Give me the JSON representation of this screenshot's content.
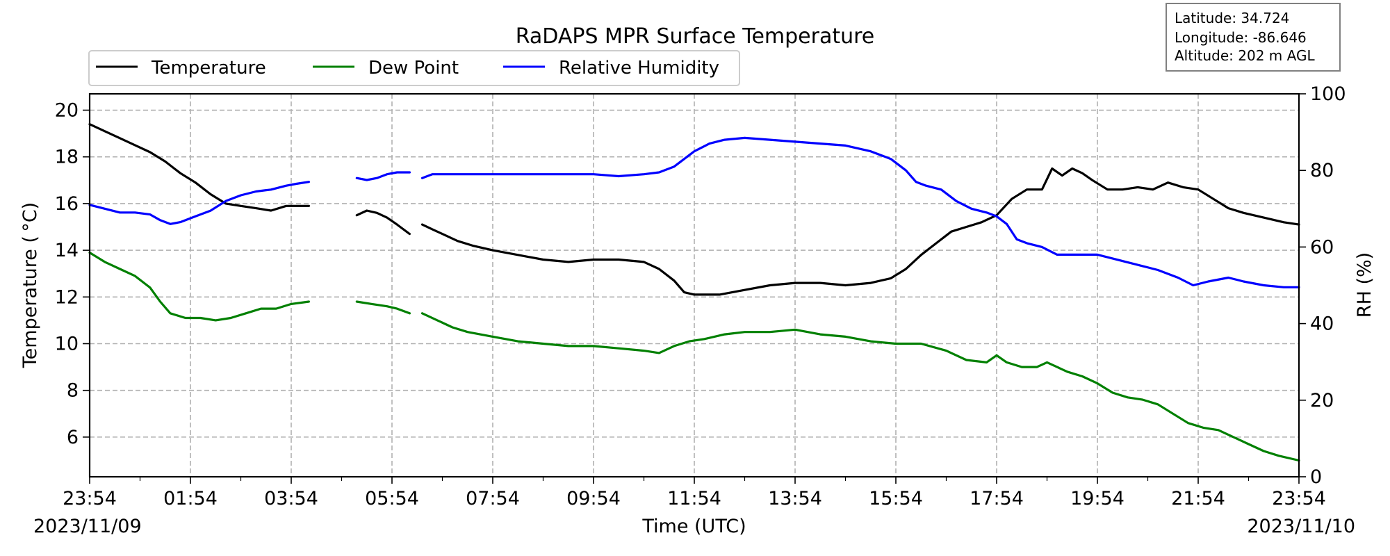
{
  "chart_data": {
    "type": "line",
    "title": "RaDAPS MPR Surface Temperature",
    "xlabel": "Time (UTC)",
    "ylabel": "Temperature ($^\\circ$C)",
    "ylabel_display": "Temperature ( °C)",
    "y2label": "RH (%)",
    "x_ticks": [
      "23:54",
      "01:54",
      "03:54",
      "05:54",
      "07:54",
      "09:54",
      "11:54",
      "13:54",
      "15:54",
      "17:54",
      "19:54",
      "21:54",
      "23:54"
    ],
    "x_start_date": "2023/11/09",
    "x_end_date": "2023/11/10",
    "x_range_hours": [
      0,
      24
    ],
    "ylim": [
      4.3,
      20.7
    ],
    "y_ticks": [
      6,
      8,
      10,
      12,
      14,
      16,
      18,
      20
    ],
    "y2lim": [
      0,
      100
    ],
    "y2_ticks": [
      0,
      20,
      40,
      60,
      80,
      100
    ],
    "grid": true,
    "legend_position": "top-left",
    "info_box": {
      "latitude": "Latitude: 34.724",
      "longitude": "Longitude: -86.646",
      "altitude": "Altitude: 202 m AGL"
    },
    "series": [
      {
        "name": "Temperature",
        "axis": "left",
        "color": "#000000",
        "segments": [
          [
            [
              0,
              19.4
            ],
            [
              0.3,
              19.1
            ],
            [
              0.6,
              18.8
            ],
            [
              0.9,
              18.5
            ],
            [
              1.2,
              18.2
            ],
            [
              1.5,
              17.8
            ],
            [
              1.8,
              17.3
            ],
            [
              2.1,
              16.9
            ],
            [
              2.4,
              16.4
            ],
            [
              2.7,
              16.0
            ],
            [
              3.0,
              15.9
            ],
            [
              3.3,
              15.8
            ],
            [
              3.6,
              15.7
            ],
            [
              3.9,
              15.9
            ],
            [
              4.1,
              15.9
            ],
            [
              4.35,
              15.9
            ]
          ],
          [
            [
              5.3,
              15.5
            ],
            [
              5.5,
              15.7
            ],
            [
              5.7,
              15.6
            ],
            [
              5.9,
              15.4
            ],
            [
              6.1,
              15.1
            ],
            [
              6.35,
              14.7
            ]
          ],
          [
            [
              6.6,
              15.1
            ],
            [
              6.8,
              14.9
            ],
            [
              7.0,
              14.7
            ],
            [
              7.3,
              14.4
            ],
            [
              7.6,
              14.2
            ],
            [
              8.0,
              14.0
            ],
            [
              8.5,
              13.8
            ],
            [
              9.0,
              13.6
            ],
            [
              9.5,
              13.5
            ],
            [
              10.0,
              13.6
            ],
            [
              10.5,
              13.6
            ],
            [
              11.0,
              13.5
            ],
            [
              11.3,
              13.2
            ],
            [
              11.6,
              12.7
            ],
            [
              11.8,
              12.2
            ],
            [
              12.0,
              12.1
            ],
            [
              12.5,
              12.1
            ],
            [
              13.0,
              12.3
            ],
            [
              13.5,
              12.5
            ],
            [
              14.0,
              12.6
            ],
            [
              14.5,
              12.6
            ],
            [
              15.0,
              12.5
            ],
            [
              15.5,
              12.6
            ],
            [
              15.9,
              12.8
            ],
            [
              16.2,
              13.2
            ],
            [
              16.5,
              13.8
            ],
            [
              16.8,
              14.3
            ],
            [
              17.1,
              14.8
            ],
            [
              17.4,
              15.0
            ],
            [
              17.7,
              15.2
            ],
            [
              18.0,
              15.5
            ],
            [
              18.3,
              16.2
            ],
            [
              18.6,
              16.6
            ],
            [
              18.9,
              16.6
            ],
            [
              19.1,
              17.5
            ],
            [
              19.3,
              17.2
            ],
            [
              19.5,
              17.5
            ],
            [
              19.7,
              17.3
            ],
            [
              19.9,
              17.0
            ],
            [
              20.2,
              16.6
            ],
            [
              20.5,
              16.6
            ],
            [
              20.8,
              16.7
            ],
            [
              21.1,
              16.6
            ],
            [
              21.4,
              16.9
            ],
            [
              21.7,
              16.7
            ],
            [
              22.0,
              16.6
            ],
            [
              22.3,
              16.2
            ],
            [
              22.6,
              15.8
            ],
            [
              22.9,
              15.6
            ],
            [
              23.3,
              15.4
            ],
            [
              23.7,
              15.2
            ],
            [
              24.0,
              15.1
            ]
          ]
        ]
      },
      {
        "name": "Dew Point",
        "axis": "left",
        "color": "#008000",
        "segments": [
          [
            [
              0,
              13.9
            ],
            [
              0.3,
              13.5
            ],
            [
              0.6,
              13.2
            ],
            [
              0.9,
              12.9
            ],
            [
              1.2,
              12.4
            ],
            [
              1.4,
              11.8
            ],
            [
              1.6,
              11.3
            ],
            [
              1.9,
              11.1
            ],
            [
              2.2,
              11.1
            ],
            [
              2.5,
              11.0
            ],
            [
              2.8,
              11.1
            ],
            [
              3.1,
              11.3
            ],
            [
              3.4,
              11.5
            ],
            [
              3.7,
              11.5
            ],
            [
              4.0,
              11.7
            ],
            [
              4.35,
              11.8
            ]
          ],
          [
            [
              5.3,
              11.8
            ],
            [
              5.6,
              11.7
            ],
            [
              5.9,
              11.6
            ],
            [
              6.1,
              11.5
            ],
            [
              6.35,
              11.3
            ]
          ],
          [
            [
              6.6,
              11.3
            ],
            [
              6.9,
              11.0
            ],
            [
              7.2,
              10.7
            ],
            [
              7.5,
              10.5
            ],
            [
              8.0,
              10.3
            ],
            [
              8.5,
              10.1
            ],
            [
              9.0,
              10.0
            ],
            [
              9.5,
              9.9
            ],
            [
              10.0,
              9.9
            ],
            [
              10.5,
              9.8
            ],
            [
              11.0,
              9.7
            ],
            [
              11.3,
              9.6
            ],
            [
              11.6,
              9.9
            ],
            [
              11.9,
              10.1
            ],
            [
              12.2,
              10.2
            ],
            [
              12.6,
              10.4
            ],
            [
              13.0,
              10.5
            ],
            [
              13.5,
              10.5
            ],
            [
              14.0,
              10.6
            ],
            [
              14.5,
              10.4
            ],
            [
              15.0,
              10.3
            ],
            [
              15.5,
              10.1
            ],
            [
              16.0,
              10.0
            ],
            [
              16.5,
              10.0
            ],
            [
              17.0,
              9.7
            ],
            [
              17.4,
              9.3
            ],
            [
              17.8,
              9.2
            ],
            [
              18.0,
              9.5
            ],
            [
              18.2,
              9.2
            ],
            [
              18.5,
              9.0
            ],
            [
              18.8,
              9.0
            ],
            [
              19.0,
              9.2
            ],
            [
              19.2,
              9.0
            ],
            [
              19.4,
              8.8
            ],
            [
              19.7,
              8.6
            ],
            [
              20.0,
              8.3
            ],
            [
              20.3,
              7.9
            ],
            [
              20.6,
              7.7
            ],
            [
              20.9,
              7.6
            ],
            [
              21.2,
              7.4
            ],
            [
              21.5,
              7.0
            ],
            [
              21.8,
              6.6
            ],
            [
              22.1,
              6.4
            ],
            [
              22.4,
              6.3
            ],
            [
              22.7,
              6.0
            ],
            [
              23.0,
              5.7
            ],
            [
              23.3,
              5.4
            ],
            [
              23.6,
              5.2
            ],
            [
              24.0,
              5.0
            ]
          ]
        ]
      },
      {
        "name": "Relative Humidity",
        "axis": "right",
        "color": "#0000ff",
        "segments": [
          [
            [
              0,
              71
            ],
            [
              0.3,
              70
            ],
            [
              0.6,
              69
            ],
            [
              0.9,
              69
            ],
            [
              1.2,
              68.5
            ],
            [
              1.4,
              67
            ],
            [
              1.6,
              66
            ],
            [
              1.8,
              66.5
            ],
            [
              2.1,
              68
            ],
            [
              2.4,
              69.5
            ],
            [
              2.7,
              72
            ],
            [
              3.0,
              73.5
            ],
            [
              3.3,
              74.5
            ],
            [
              3.6,
              75
            ],
            [
              3.9,
              76
            ],
            [
              4.1,
              76.5
            ],
            [
              4.35,
              77
            ]
          ],
          [
            [
              5.3,
              78
            ],
            [
              5.5,
              77.5
            ],
            [
              5.7,
              78
            ],
            [
              5.9,
              79
            ],
            [
              6.1,
              79.5
            ],
            [
              6.35,
              79.5
            ]
          ],
          [
            [
              6.6,
              78
            ],
            [
              6.8,
              79
            ],
            [
              7.0,
              79
            ],
            [
              7.5,
              79
            ],
            [
              8.0,
              79
            ],
            [
              8.5,
              79
            ],
            [
              9.0,
              79
            ],
            [
              9.5,
              79
            ],
            [
              10.0,
              79
            ],
            [
              10.5,
              78.5
            ],
            [
              11.0,
              79
            ],
            [
              11.3,
              79.5
            ],
            [
              11.6,
              81
            ],
            [
              11.8,
              83
            ],
            [
              12.0,
              85
            ],
            [
              12.3,
              87
            ],
            [
              12.6,
              88
            ],
            [
              13.0,
              88.5
            ],
            [
              13.5,
              88
            ],
            [
              14.0,
              87.5
            ],
            [
              14.5,
              87
            ],
            [
              15.0,
              86.5
            ],
            [
              15.5,
              85
            ],
            [
              15.9,
              83
            ],
            [
              16.2,
              80
            ],
            [
              16.4,
              77
            ],
            [
              16.6,
              76
            ],
            [
              16.9,
              75
            ],
            [
              17.2,
              72
            ],
            [
              17.5,
              70
            ],
            [
              17.8,
              69
            ],
            [
              18.0,
              68
            ],
            [
              18.2,
              66
            ],
            [
              18.4,
              62
            ],
            [
              18.6,
              61
            ],
            [
              18.9,
              60
            ],
            [
              19.2,
              58
            ],
            [
              19.6,
              58
            ],
            [
              20.0,
              58
            ],
            [
              20.3,
              57
            ],
            [
              20.6,
              56
            ],
            [
              20.9,
              55
            ],
            [
              21.2,
              54
            ],
            [
              21.6,
              52
            ],
            [
              21.9,
              50
            ],
            [
              22.2,
              51
            ],
            [
              22.6,
              52
            ],
            [
              22.9,
              51
            ],
            [
              23.3,
              50
            ],
            [
              23.7,
              49.5
            ],
            [
              24.0,
              49.5
            ]
          ]
        ]
      }
    ]
  }
}
